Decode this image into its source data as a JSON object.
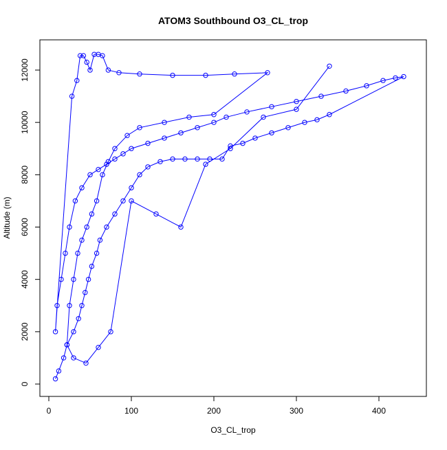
{
  "chart_data": {
    "type": "scatter",
    "title": "ATOM3 Southbound O3_CL_trop",
    "xlabel": "O3_CL_trop",
    "ylabel": "Altitude (m)",
    "xlim": [
      0,
      450
    ],
    "ylim": [
      -100,
      13000
    ],
    "x_ticks": [
      0,
      100,
      200,
      300,
      400
    ],
    "y_ticks": [
      0,
      2000,
      4000,
      6000,
      8000,
      10000,
      12000
    ],
    "marker": "open circle",
    "connected_by_line": true,
    "color": "#0000ff",
    "grid": false,
    "legend": "none",
    "series": [
      {
        "x": [
          8,
          12,
          18,
          22,
          30,
          36,
          40,
          44,
          48,
          52,
          58,
          62,
          70,
          80,
          90,
          100,
          110,
          120,
          135,
          150,
          165,
          180,
          195,
          210,
          220,
          235,
          250,
          270,
          290,
          310,
          325,
          340,
          430,
          420,
          405,
          385,
          360,
          330,
          300,
          270,
          240,
          215,
          200,
          180,
          160,
          140,
          120,
          100,
          90,
          80,
          70,
          60,
          50,
          40,
          32,
          25,
          20,
          15,
          10,
          8,
          28,
          34,
          38,
          42,
          46,
          50,
          55,
          60,
          65,
          72,
          85,
          110,
          150,
          190,
          225,
          265,
          200,
          170,
          140,
          110,
          95,
          80,
          72,
          65,
          58,
          52,
          46,
          40,
          35,
          30,
          25,
          22,
          30,
          45,
          60,
          75,
          100,
          130,
          160,
          190,
          220,
          260,
          300,
          340
        ],
        "y": [
          200,
          500,
          1000,
          1500,
          2000,
          2500,
          3000,
          3500,
          4000,
          4500,
          5000,
          5500,
          6000,
          6500,
          7000,
          7500,
          8000,
          8300,
          8500,
          8600,
          8600,
          8600,
          8600,
          8600,
          9100,
          9200,
          9400,
          9600,
          9800,
          10000,
          10100,
          10300,
          11750,
          11700,
          11600,
          11400,
          11200,
          11000,
          10800,
          10600,
          10400,
          10200,
          10000,
          9800,
          9600,
          9400,
          9200,
          9000,
          8800,
          8600,
          8400,
          8200,
          8000,
          7500,
          7000,
          6000,
          5000,
          4000,
          3000,
          2000,
          11000,
          11600,
          12550,
          12550,
          12300,
          12000,
          12600,
          12600,
          12550,
          12000,
          11900,
          11850,
          11800,
          11800,
          11850,
          11900,
          10300,
          10200,
          10000,
          9800,
          9500,
          9000,
          8500,
          8000,
          7000,
          6500,
          6000,
          5500,
          5000,
          4000,
          3000,
          1500,
          1000,
          800,
          1400,
          2000,
          7000,
          6500,
          6000,
          8400,
          9000,
          10200,
          10500,
          12150
        ]
      }
    ]
  }
}
